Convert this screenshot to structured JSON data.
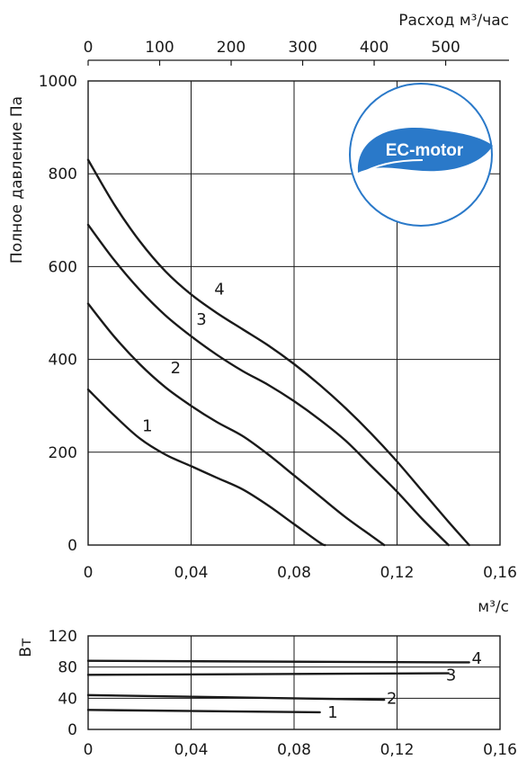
{
  "chart_data": [
    {
      "type": "line",
      "title": "",
      "xlabel": "м³/с",
      "ylabel": "Полное давление Па",
      "x2label": "Расход м³/час",
      "xlim": [
        0,
        0.16
      ],
      "ylim": [
        0,
        1000
      ],
      "x2lim": [
        0,
        576
      ],
      "xticks": [
        "0",
        "0,04",
        "0,08",
        "0,12",
        "0,16"
      ],
      "yticks": [
        "0",
        "200",
        "400",
        "600",
        "800",
        "1000"
      ],
      "x2ticks": [
        "0",
        "100",
        "200",
        "300",
        "400",
        "500"
      ],
      "grid": true,
      "series": [
        {
          "name": "1",
          "x": [
            0,
            0.01,
            0.02,
            0.03,
            0.04,
            0.05,
            0.06,
            0.07,
            0.08,
            0.09,
            0.092
          ],
          "y": [
            335,
            280,
            230,
            195,
            170,
            145,
            120,
            85,
            45,
            5,
            0
          ]
        },
        {
          "name": "2",
          "x": [
            0,
            0.01,
            0.02,
            0.03,
            0.04,
            0.05,
            0.06,
            0.07,
            0.08,
            0.09,
            0.1,
            0.11,
            0.115
          ],
          "y": [
            520,
            450,
            390,
            340,
            300,
            265,
            235,
            195,
            150,
            105,
            60,
            20,
            0
          ]
        },
        {
          "name": "3",
          "x": [
            0,
            0.01,
            0.02,
            0.03,
            0.04,
            0.05,
            0.06,
            0.07,
            0.08,
            0.09,
            0.1,
            0.11,
            0.12,
            0.13,
            0.14
          ],
          "y": [
            690,
            615,
            550,
            495,
            450,
            410,
            375,
            345,
            310,
            270,
            225,
            170,
            115,
            55,
            0
          ]
        },
        {
          "name": "4",
          "x": [
            0,
            0.01,
            0.02,
            0.03,
            0.04,
            0.05,
            0.06,
            0.07,
            0.08,
            0.09,
            0.1,
            0.11,
            0.12,
            0.13,
            0.14,
            0.148
          ],
          "y": [
            830,
            735,
            655,
            590,
            540,
            500,
            465,
            430,
            390,
            345,
            295,
            240,
            180,
            115,
            50,
            0
          ]
        }
      ],
      "curve_labels": [
        "1",
        "2",
        "3",
        "4"
      ],
      "logo": {
        "text": "EC-motor",
        "color": "#2a79c9"
      }
    },
    {
      "type": "line",
      "title": "",
      "xlabel": "",
      "ylabel": "Вт",
      "xlim": [
        0,
        0.16
      ],
      "ylim": [
        0,
        120
      ],
      "xticks": [
        "0",
        "0,04",
        "0,08",
        "0,12",
        "0,16"
      ],
      "yticks": [
        "0",
        "40",
        "80",
        "120"
      ],
      "grid": true,
      "series": [
        {
          "name": "1",
          "x": [
            0,
            0.09
          ],
          "y": [
            25,
            22
          ]
        },
        {
          "name": "2",
          "x": [
            0,
            0.115
          ],
          "y": [
            44,
            38
          ]
        },
        {
          "name": "3",
          "x": [
            0,
            0.14
          ],
          "y": [
            70,
            72
          ]
        },
        {
          "name": "4",
          "x": [
            0,
            0.148
          ],
          "y": [
            88,
            86
          ]
        }
      ],
      "curve_labels": [
        "1",
        "2",
        "3",
        "4"
      ]
    }
  ]
}
